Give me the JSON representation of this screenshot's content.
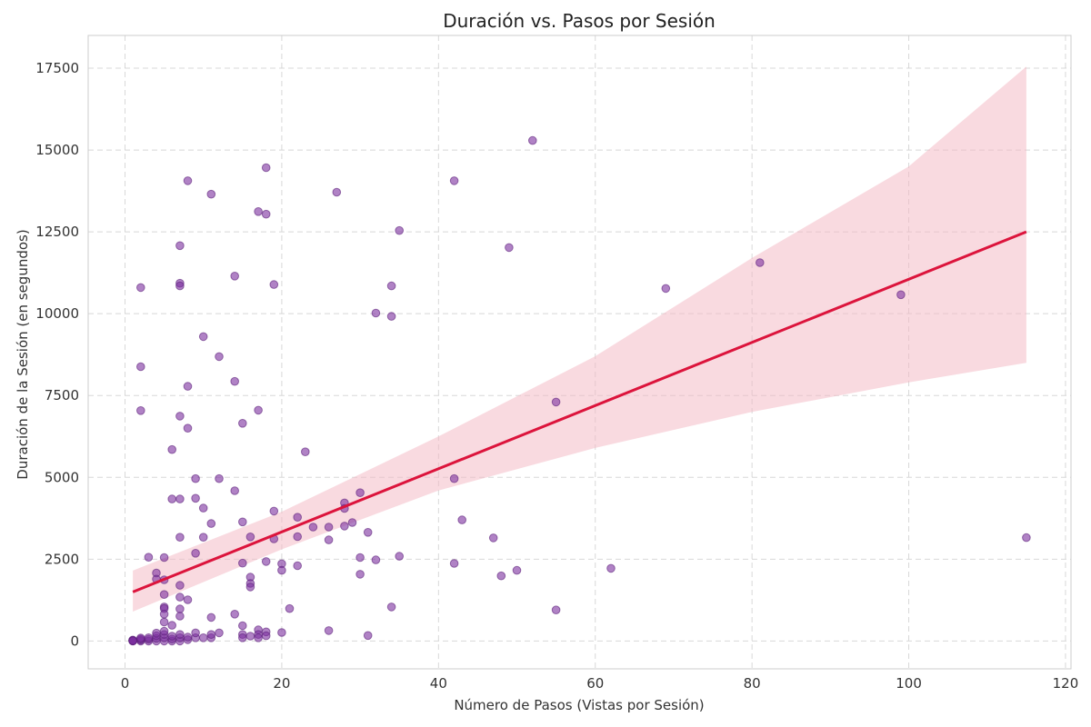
{
  "chart_data": {
    "type": "scatter",
    "title": "Duración vs. Pasos por Sesión",
    "xlabel": "Número de Pasos (Vistas por Sesión)",
    "ylabel": "Duración de la Sesión (en segundos)",
    "xlim": [
      -4.7,
      120.7
    ],
    "ylim": [
      -850,
      18500
    ],
    "xticks": [
      0,
      20,
      40,
      60,
      80,
      100,
      120
    ],
    "yticks": [
      0,
      2500,
      5000,
      7500,
      10000,
      12500,
      15000,
      17500
    ],
    "grid": true,
    "colors": {
      "points": "#7b2f9e",
      "regression_line": "#dc143c",
      "confidence_band": "#f4b6c2"
    },
    "regression": {
      "x": [
        1,
        115
      ],
      "y": [
        1500,
        12500
      ]
    },
    "confidence_band": {
      "x": [
        1,
        20,
        40,
        60,
        80,
        100,
        115
      ],
      "lower": [
        900,
        2800,
        4600,
        5900,
        7000,
        7900,
        8500
      ],
      "upper": [
        2150,
        3950,
        6250,
        8700,
        11700,
        14500,
        17550
      ]
    },
    "points": [
      [
        1,
        0
      ],
      [
        1,
        10
      ],
      [
        1,
        20
      ],
      [
        1,
        30
      ],
      [
        1,
        5
      ],
      [
        1,
        15
      ],
      [
        2,
        0
      ],
      [
        2,
        30
      ],
      [
        2,
        60
      ],
      [
        2,
        90
      ],
      [
        3,
        0
      ],
      [
        3,
        50
      ],
      [
        3,
        100
      ],
      [
        4,
        0
      ],
      [
        4,
        80
      ],
      [
        4,
        160
      ],
      [
        4,
        240
      ],
      [
        5,
        0
      ],
      [
        5,
        100
      ],
      [
        5,
        200
      ],
      [
        5,
        300
      ],
      [
        6,
        0
      ],
      [
        6,
        60
      ],
      [
        6,
        150
      ],
      [
        7,
        0
      ],
      [
        7,
        100
      ],
      [
        7,
        200
      ],
      [
        8,
        40
      ],
      [
        8,
        120
      ],
      [
        9,
        100
      ],
      [
        9,
        250
      ],
      [
        10,
        100
      ],
      [
        11,
        100
      ],
      [
        11,
        200
      ],
      [
        12,
        250
      ],
      [
        1,
        5
      ],
      [
        2,
        10800
      ],
      [
        2,
        8380
      ],
      [
        2,
        7040
      ],
      [
        3,
        2560
      ],
      [
        4,
        2080
      ],
      [
        4,
        1890
      ],
      [
        5,
        2550
      ],
      [
        5,
        1870
      ],
      [
        5,
        1420
      ],
      [
        5,
        1040
      ],
      [
        5,
        990
      ],
      [
        5,
        820
      ],
      [
        5,
        580
      ],
      [
        6,
        5850
      ],
      [
        6,
        4340
      ],
      [
        6,
        480
      ],
      [
        7,
        12080
      ],
      [
        7,
        10930
      ],
      [
        7,
        10850
      ],
      [
        7,
        6870
      ],
      [
        7,
        4340
      ],
      [
        7,
        3170
      ],
      [
        7,
        1700
      ],
      [
        7,
        1340
      ],
      [
        7,
        980
      ],
      [
        7,
        760
      ],
      [
        8,
        14060
      ],
      [
        8,
        7780
      ],
      [
        8,
        6500
      ],
      [
        8,
        1260
      ],
      [
        9,
        4960
      ],
      [
        9,
        4360
      ],
      [
        9,
        2680
      ],
      [
        10,
        9300
      ],
      [
        10,
        4060
      ],
      [
        10,
        3170
      ],
      [
        11,
        13650
      ],
      [
        11,
        3590
      ],
      [
        11,
        720
      ],
      [
        12,
        8690
      ],
      [
        12,
        4960
      ],
      [
        14,
        11150
      ],
      [
        14,
        7930
      ],
      [
        14,
        4590
      ],
      [
        14,
        820
      ],
      [
        15,
        6650
      ],
      [
        15,
        3640
      ],
      [
        15,
        2380
      ],
      [
        15,
        470
      ],
      [
        15,
        200
      ],
      [
        15,
        100
      ],
      [
        16,
        3180
      ],
      [
        16,
        1950
      ],
      [
        16,
        1760
      ],
      [
        16,
        1650
      ],
      [
        16,
        150
      ],
      [
        17,
        13120
      ],
      [
        17,
        7050
      ],
      [
        17,
        340
      ],
      [
        17,
        200
      ],
      [
        17,
        100
      ],
      [
        18,
        14460
      ],
      [
        18,
        13040
      ],
      [
        18,
        2430
      ],
      [
        18,
        280
      ],
      [
        18,
        160
      ],
      [
        19,
        10890
      ],
      [
        19,
        3970
      ],
      [
        19,
        3120
      ],
      [
        20,
        2360
      ],
      [
        20,
        2160
      ],
      [
        20,
        260
      ],
      [
        21,
        990
      ],
      [
        22,
        3780
      ],
      [
        22,
        3190
      ],
      [
        22,
        2300
      ],
      [
        23,
        5780
      ],
      [
        24,
        3480
      ],
      [
        26,
        3480
      ],
      [
        26,
        3090
      ],
      [
        26,
        320
      ],
      [
        27,
        13710
      ],
      [
        28,
        4220
      ],
      [
        28,
        4050
      ],
      [
        28,
        3510
      ],
      [
        29,
        3620
      ],
      [
        30,
        4530
      ],
      [
        30,
        2550
      ],
      [
        30,
        2040
      ],
      [
        31,
        3320
      ],
      [
        31,
        170
      ],
      [
        32,
        10020
      ],
      [
        32,
        2480
      ],
      [
        34,
        10850
      ],
      [
        34,
        9920
      ],
      [
        34,
        1040
      ],
      [
        35,
        12540
      ],
      [
        35,
        2590
      ],
      [
        42,
        14060
      ],
      [
        42,
        4960
      ],
      [
        42,
        2370
      ],
      [
        43,
        3700
      ],
      [
        47,
        3150
      ],
      [
        48,
        1990
      ],
      [
        49,
        12020
      ],
      [
        50,
        2160
      ],
      [
        52,
        15290
      ],
      [
        55,
        7300
      ],
      [
        55,
        950
      ],
      [
        62,
        2220
      ],
      [
        69,
        10770
      ],
      [
        81,
        11560
      ],
      [
        99,
        10580
      ],
      [
        115,
        3160
      ]
    ]
  }
}
